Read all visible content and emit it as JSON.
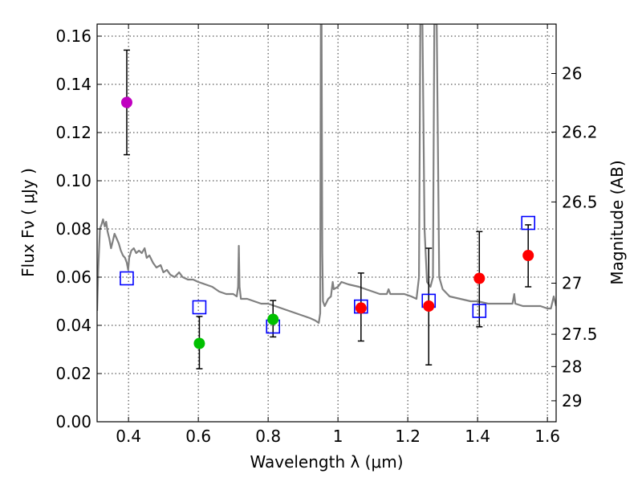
{
  "chart_data": {
    "type": "scatter",
    "xlabel": "Wavelength  λ (μm)",
    "ylabel": "Flux  Fν  ( μJy )",
    "ylabel_right": "Magnitude (AB)",
    "xlim": [
      0.31,
      1.625
    ],
    "ylim": [
      0.0,
      0.165
    ],
    "x_ticks": [
      0.4,
      0.6,
      0.8,
      1.0,
      1.2,
      1.4,
      1.6
    ],
    "x_tick_labels": [
      "0.4",
      "0.6",
      "0.8",
      "1",
      "1.2",
      "1.4",
      "1.6"
    ],
    "y_ticks": [
      0.0,
      0.02,
      0.04,
      0.06,
      0.08,
      0.1,
      0.12,
      0.14,
      0.16
    ],
    "y_tick_labels": [
      "0.00",
      "0.02",
      "0.04",
      "0.06",
      "0.08",
      "0.10",
      "0.12",
      "0.14",
      "0.16"
    ],
    "right_ticks": [
      {
        "label": "26",
        "flux": 0.1445
      },
      {
        "label": "26.2",
        "flux": 0.1202
      },
      {
        "label": "26.5",
        "flux": 0.0912
      },
      {
        "label": "27",
        "flux": 0.0575
      },
      {
        "label": "27.5",
        "flux": 0.0363
      },
      {
        "label": "28",
        "flux": 0.0229
      },
      {
        "label": "29",
        "flux": 0.0087
      }
    ],
    "grid": true,
    "series": [
      {
        "name": "photometry",
        "points": [
          {
            "x": 0.395,
            "y": 0.1325,
            "yerr_low": 0.1108,
            "yerr_high": 0.1542,
            "color": "#c000c0"
          },
          {
            "x": 0.603,
            "y": 0.0325,
            "yerr_low": 0.022,
            "yerr_high": 0.0437,
            "color": "#00c000"
          },
          {
            "x": 0.814,
            "y": 0.0425,
            "yerr_low": 0.0352,
            "yerr_high": 0.0503,
            "color": "#00c000"
          },
          {
            "x": 1.066,
            "y": 0.0472,
            "yerr_low": 0.0335,
            "yerr_high": 0.0617,
            "color": "#ff0000"
          },
          {
            "x": 1.26,
            "y": 0.048,
            "yerr_low": 0.0236,
            "yerr_high": 0.072,
            "color": "#ff0000"
          },
          {
            "x": 1.405,
            "y": 0.0595,
            "yerr_low": 0.0394,
            "yerr_high": 0.0789,
            "color": "#ff0000"
          },
          {
            "x": 1.545,
            "y": 0.069,
            "yerr_low": 0.056,
            "yerr_high": 0.0817,
            "color": "#ff0000"
          }
        ]
      },
      {
        "name": "model synthetic photometry",
        "marker": "open-square",
        "color": "#0000ff",
        "points": [
          {
            "x": 0.395,
            "y": 0.0595
          },
          {
            "x": 0.603,
            "y": 0.0475
          },
          {
            "x": 0.814,
            "y": 0.0395
          },
          {
            "x": 1.066,
            "y": 0.0478
          },
          {
            "x": 1.26,
            "y": 0.0502
          },
          {
            "x": 1.405,
            "y": 0.046
          },
          {
            "x": 1.545,
            "y": 0.0825
          }
        ]
      },
      {
        "name": "model spectrum",
        "type": "line",
        "color": "#808080",
        "points": [
          [
            0.31,
            0.046
          ],
          [
            0.313,
            0.062
          ],
          [
            0.318,
            0.08
          ],
          [
            0.323,
            0.082
          ],
          [
            0.327,
            0.084
          ],
          [
            0.332,
            0.081
          ],
          [
            0.336,
            0.083
          ],
          [
            0.34,
            0.079
          ],
          [
            0.345,
            0.076
          ],
          [
            0.35,
            0.072
          ],
          [
            0.355,
            0.075
          ],
          [
            0.36,
            0.078
          ],
          [
            0.366,
            0.076
          ],
          [
            0.372,
            0.074
          ],
          [
            0.378,
            0.071
          ],
          [
            0.384,
            0.069
          ],
          [
            0.39,
            0.068
          ],
          [
            0.395,
            0.066
          ],
          [
            0.399,
            0.063
          ],
          [
            0.402,
            0.068
          ],
          [
            0.408,
            0.071
          ],
          [
            0.415,
            0.072
          ],
          [
            0.422,
            0.07
          ],
          [
            0.43,
            0.071
          ],
          [
            0.438,
            0.07
          ],
          [
            0.446,
            0.072
          ],
          [
            0.452,
            0.068
          ],
          [
            0.46,
            0.069
          ],
          [
            0.47,
            0.066
          ],
          [
            0.48,
            0.064
          ],
          [
            0.492,
            0.065
          ],
          [
            0.5,
            0.062
          ],
          [
            0.51,
            0.063
          ],
          [
            0.52,
            0.061
          ],
          [
            0.532,
            0.06
          ],
          [
            0.545,
            0.062
          ],
          [
            0.555,
            0.06
          ],
          [
            0.57,
            0.059
          ],
          [
            0.585,
            0.059
          ],
          [
            0.6,
            0.058
          ],
          [
            0.62,
            0.057
          ],
          [
            0.64,
            0.056
          ],
          [
            0.66,
            0.054
          ],
          [
            0.68,
            0.053
          ],
          [
            0.7,
            0.053
          ],
          [
            0.71,
            0.052
          ],
          [
            0.714,
            0.056
          ],
          [
            0.716,
            0.073
          ],
          [
            0.718,
            0.056
          ],
          [
            0.722,
            0.051
          ],
          [
            0.74,
            0.051
          ],
          [
            0.76,
            0.05
          ],
          [
            0.78,
            0.049
          ],
          [
            0.8,
            0.049
          ],
          [
            0.82,
            0.048
          ],
          [
            0.84,
            0.047
          ],
          [
            0.86,
            0.046
          ],
          [
            0.88,
            0.045
          ],
          [
            0.9,
            0.044
          ],
          [
            0.92,
            0.043
          ],
          [
            0.935,
            0.042
          ],
          [
            0.945,
            0.041
          ],
          [
            0.949,
            0.045
          ],
          [
            0.951,
            0.165
          ],
          [
            0.953,
            0.165
          ],
          [
            0.955,
            0.07
          ],
          [
            0.957,
            0.05
          ],
          [
            0.962,
            0.048
          ],
          [
            0.972,
            0.051
          ],
          [
            0.98,
            0.052
          ],
          [
            0.985,
            0.058
          ],
          [
            0.988,
            0.055
          ],
          [
            1.0,
            0.056
          ],
          [
            1.01,
            0.058
          ],
          [
            1.03,
            0.057
          ],
          [
            1.06,
            0.056
          ],
          [
            1.08,
            0.055
          ],
          [
            1.1,
            0.054
          ],
          [
            1.12,
            0.053
          ],
          [
            1.14,
            0.053
          ],
          [
            1.145,
            0.055
          ],
          [
            1.15,
            0.053
          ],
          [
            1.17,
            0.053
          ],
          [
            1.19,
            0.053
          ],
          [
            1.21,
            0.052
          ],
          [
            1.225,
            0.051
          ],
          [
            1.232,
            0.06
          ],
          [
            1.236,
            0.165
          ],
          [
            1.242,
            0.165
          ],
          [
            1.248,
            0.08
          ],
          [
            1.255,
            0.058
          ],
          [
            1.265,
            0.056
          ],
          [
            1.272,
            0.06
          ],
          [
            1.276,
            0.165
          ],
          [
            1.283,
            0.165
          ],
          [
            1.29,
            0.06
          ],
          [
            1.3,
            0.055
          ],
          [
            1.32,
            0.052
          ],
          [
            1.35,
            0.051
          ],
          [
            1.38,
            0.05
          ],
          [
            1.4,
            0.05
          ],
          [
            1.43,
            0.049
          ],
          [
            1.46,
            0.049
          ],
          [
            1.49,
            0.049
          ],
          [
            1.5,
            0.049
          ],
          [
            1.505,
            0.053
          ],
          [
            1.508,
            0.049
          ],
          [
            1.53,
            0.048
          ],
          [
            1.56,
            0.048
          ],
          [
            1.58,
            0.048
          ],
          [
            1.6,
            0.047
          ],
          [
            1.61,
            0.047
          ],
          [
            1.618,
            0.052
          ],
          [
            1.625,
            0.048
          ]
        ]
      }
    ]
  }
}
